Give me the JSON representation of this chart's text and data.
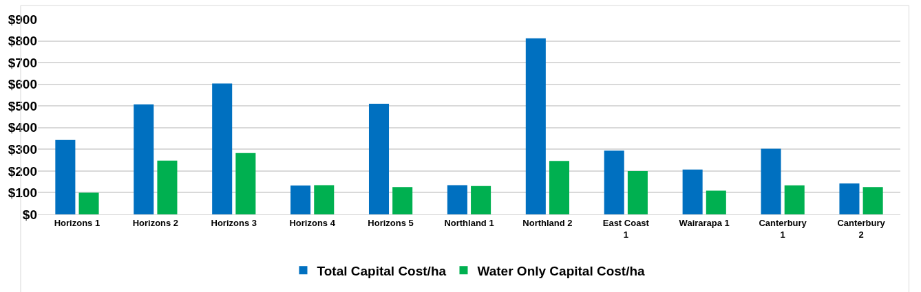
{
  "chart_data": {
    "type": "bar",
    "categories": [
      "Horizons 1",
      "Horizons 2",
      "Horizons 3",
      "Horizons 4",
      "Horizons 5",
      "Northland 1",
      "Northland 2",
      "East Coast 1",
      "Wairarapa 1",
      "Canterbury 1",
      "Canterbury 2"
    ],
    "series": [
      {
        "name": "Total Capital Cost/ha",
        "color": "#0070c0",
        "values": [
          343,
          507,
          604,
          133,
          510,
          135,
          812,
          294,
          207,
          303,
          143
        ]
      },
      {
        "name": "Water Only Capital Cost/ha",
        "color": "#00b050",
        "values": [
          100,
          248,
          283,
          135,
          126,
          131,
          246,
          200,
          109,
          134,
          126
        ]
      }
    ],
    "ylim": [
      0,
      900
    ],
    "yticks": [
      {
        "value": 0,
        "label": "$0"
      },
      {
        "value": 100,
        "label": "$100"
      },
      {
        "value": 200,
        "label": "$200"
      },
      {
        "value": 300,
        "label": "$300"
      },
      {
        "value": 400,
        "label": "$400"
      },
      {
        "value": 500,
        "label": "$500"
      },
      {
        "value": 600,
        "label": "$600"
      },
      {
        "value": 700,
        "label": "$700"
      },
      {
        "value": 800,
        "label": "$800"
      },
      {
        "value": 900,
        "label": "$900"
      }
    ],
    "grid": "y",
    "legend": "bottom"
  }
}
